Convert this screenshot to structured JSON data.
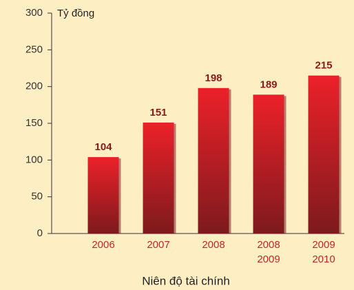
{
  "chart_data": {
    "type": "bar",
    "y_axis_label": "Tỷ đồng",
    "x_axis_label": "Niên độ tài chính",
    "categories": [
      [
        "2006"
      ],
      [
        "2007"
      ],
      [
        "2008"
      ],
      [
        "2008",
        "2009"
      ],
      [
        "2009",
        "2010"
      ]
    ],
    "values": [
      104,
      151,
      198,
      189,
      215
    ],
    "color": "#d8202a",
    "ylim": [
      0,
      300
    ],
    "yticks": [
      0,
      50,
      100,
      150,
      200,
      250,
      300
    ]
  }
}
